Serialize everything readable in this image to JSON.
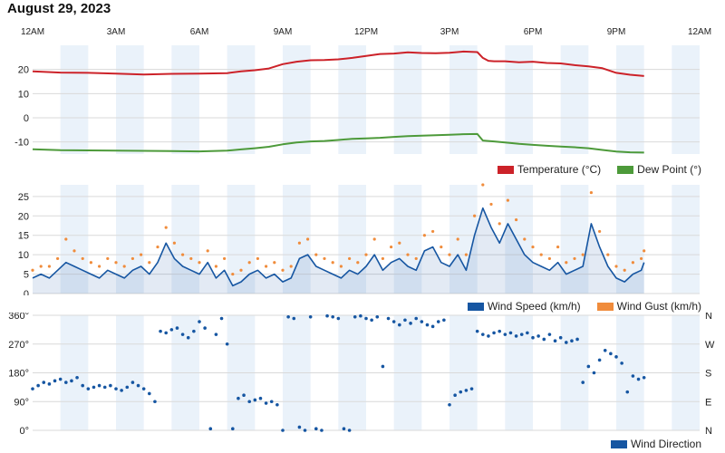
{
  "page": {
    "title": "August 29, 2023"
  },
  "x_axis": {
    "ticks": [
      "12AM",
      "3AM",
      "6AM",
      "9AM",
      "12PM",
      "3PM",
      "6PM",
      "9PM",
      "12AM"
    ],
    "tick_hours": [
      0,
      3,
      6,
      9,
      12,
      15,
      18,
      21,
      24
    ],
    "range_hours": [
      0,
      24
    ]
  },
  "colors": {
    "temperature": "#cc2229",
    "dew_point": "#4d9a3a",
    "wind_speed": "#1656a2",
    "wind_gust": "#f08c3c",
    "wind_direction": "#1656a2",
    "band": "#eaf2fa",
    "grid": "#d9d9d9"
  },
  "chart_data": [
    {
      "type": "line",
      "x_unit": "hours since midnight",
      "ylim": [
        -15,
        30
      ],
      "y_ticks": [
        -10,
        0,
        10,
        20
      ],
      "grid": true,
      "legend_position": "bottom-right",
      "legend": [
        "Temperature (°C)",
        "Dew Point (°)"
      ],
      "series": [
        {
          "name": "Temperature (°C)",
          "x": [
            0,
            1,
            2,
            3,
            4,
            5,
            6,
            7,
            7.5,
            8,
            8.5,
            9,
            9.5,
            10,
            10.5,
            11,
            11.5,
            12,
            12.5,
            13,
            13.5,
            14,
            14.5,
            15,
            15.5,
            16,
            16.2,
            16.4,
            16.6,
            17,
            17.5,
            18,
            18.5,
            19,
            19.5,
            20,
            20.5,
            21,
            21.5,
            22
          ],
          "y": [
            19.2,
            18.7,
            18.6,
            18.3,
            17.9,
            18.2,
            18.3,
            18.5,
            19.2,
            19.7,
            20.4,
            22.2,
            23.2,
            23.8,
            23.9,
            24.2,
            24.8,
            25.6,
            26.4,
            26.6,
            27.1,
            26.8,
            26.7,
            26.9,
            27.4,
            27.2,
            24.8,
            23.6,
            23.4,
            23.4,
            23.0,
            23.2,
            22.7,
            22.5,
            21.8,
            21.3,
            20.5,
            18.6,
            17.8,
            17.3
          ]
        },
        {
          "name": "Dew Point (°)",
          "x": [
            0,
            1,
            2,
            3,
            4,
            5,
            6,
            7,
            7.5,
            8,
            8.5,
            9,
            9.5,
            10,
            10.5,
            11,
            11.5,
            12,
            12.5,
            13,
            13.5,
            14,
            14.5,
            15,
            15.5,
            16,
            16.2,
            16.4,
            16.6,
            17,
            17.5,
            18,
            18.5,
            19,
            19.5,
            20,
            20.5,
            21,
            21.5,
            22
          ],
          "y": [
            -13.0,
            -13.4,
            -13.5,
            -13.6,
            -13.7,
            -13.8,
            -13.9,
            -13.6,
            -13.1,
            -12.6,
            -12.0,
            -11.0,
            -10.2,
            -9.8,
            -9.6,
            -9.2,
            -8.7,
            -8.5,
            -8.3,
            -7.9,
            -7.6,
            -7.4,
            -7.2,
            -7.0,
            -6.8,
            -6.7,
            -9.4,
            -9.6,
            -9.8,
            -10.2,
            -10.8,
            -11.2,
            -11.6,
            -11.9,
            -12.2,
            -12.6,
            -13.3,
            -14.0,
            -14.3,
            -14.4
          ]
        }
      ]
    },
    {
      "type": "line",
      "x_unit": "hours since midnight",
      "ylim": [
        0,
        28
      ],
      "y_ticks": [
        0,
        5,
        10,
        15,
        20,
        25
      ],
      "grid": true,
      "legend_position": "bottom-right",
      "legend": [
        "Wind Speed (km/h)",
        "Wind Gust (km/h)"
      ],
      "series": [
        {
          "name": "Wind Speed (km/h)",
          "x": [
            0,
            0.3,
            0.6,
            0.9,
            1.2,
            1.5,
            1.8,
            2.1,
            2.4,
            2.7,
            3.0,
            3.3,
            3.6,
            3.9,
            4.2,
            4.5,
            4.8,
            5.1,
            5.4,
            5.7,
            6.0,
            6.3,
            6.6,
            6.9,
            7.2,
            7.5,
            7.8,
            8.1,
            8.4,
            8.7,
            9.0,
            9.3,
            9.6,
            9.9,
            10.2,
            10.5,
            10.8,
            11.1,
            11.4,
            11.7,
            12.0,
            12.3,
            12.6,
            12.9,
            13.2,
            13.5,
            13.8,
            14.1,
            14.4,
            14.7,
            15.0,
            15.3,
            15.6,
            15.9,
            16.2,
            16.5,
            16.8,
            17.1,
            17.4,
            17.7,
            18.0,
            18.3,
            18.6,
            18.9,
            19.2,
            19.5,
            19.8,
            20.1,
            20.4,
            20.7,
            21.0,
            21.3,
            21.6,
            21.9,
            22.0
          ],
          "y": [
            4,
            5,
            4,
            6,
            8,
            7,
            6,
            5,
            4,
            6,
            5,
            4,
            6,
            7,
            5,
            8,
            13,
            9,
            7,
            6,
            5,
            8,
            4,
            6,
            2,
            3,
            5,
            6,
            4,
            5,
            3,
            4,
            9,
            10,
            7,
            6,
            5,
            4,
            6,
            5,
            7,
            10,
            6,
            8,
            9,
            7,
            6,
            11,
            12,
            8,
            7,
            10,
            6,
            15,
            22,
            17,
            13,
            18,
            14,
            10,
            8,
            7,
            6,
            8,
            5,
            6,
            7,
            18,
            12,
            7,
            4,
            3,
            5,
            6,
            8
          ],
          "area": true
        },
        {
          "name": "Wind Gust (km/h)",
          "x": [
            0,
            0.3,
            0.6,
            0.9,
            1.2,
            1.5,
            1.8,
            2.1,
            2.4,
            2.7,
            3.0,
            3.3,
            3.6,
            3.9,
            4.2,
            4.5,
            4.8,
            5.1,
            5.4,
            5.7,
            6.0,
            6.3,
            6.6,
            6.9,
            7.2,
            7.5,
            7.8,
            8.1,
            8.4,
            8.7,
            9.0,
            9.3,
            9.6,
            9.9,
            10.2,
            10.5,
            10.8,
            11.1,
            11.4,
            11.7,
            12.0,
            12.3,
            12.6,
            12.9,
            13.2,
            13.5,
            13.8,
            14.1,
            14.4,
            14.7,
            15.0,
            15.3,
            15.6,
            15.9,
            16.2,
            16.5,
            16.8,
            17.1,
            17.4,
            17.7,
            18.0,
            18.3,
            18.6,
            18.9,
            19.2,
            19.5,
            19.8,
            20.1,
            20.4,
            20.7,
            21.0,
            21.3,
            21.6,
            21.9,
            22.0
          ],
          "y": [
            6,
            7,
            7,
            9,
            14,
            11,
            9,
            8,
            7,
            9,
            8,
            7,
            9,
            10,
            8,
            12,
            17,
            13,
            10,
            9,
            8,
            11,
            7,
            9,
            5,
            6,
            8,
            9,
            7,
            8,
            6,
            7,
            13,
            14,
            10,
            9,
            8,
            7,
            9,
            8,
            10,
            14,
            9,
            12,
            13,
            10,
            9,
            15,
            16,
            12,
            10,
            14,
            10,
            20,
            28,
            23,
            18,
            24,
            19,
            14,
            12,
            10,
            9,
            12,
            8,
            9,
            10,
            26,
            16,
            10,
            7,
            6,
            8,
            9,
            11
          ]
        }
      ]
    },
    {
      "type": "scatter",
      "x_unit": "hours since midnight",
      "ylim": [
        0,
        360
      ],
      "y_ticks": [
        0,
        90,
        180,
        270,
        360
      ],
      "y_tick_labels": [
        "0°",
        "90°",
        "180°",
        "270°",
        "360°"
      ],
      "y_tick_labels_right": [
        "N",
        "E",
        "S",
        "W",
        "N"
      ],
      "grid": true,
      "legend_position": "bottom-right",
      "legend": [
        "Wind Direction"
      ],
      "series": [
        {
          "name": "Wind Direction",
          "x": [
            0,
            0.2,
            0.4,
            0.6,
            0.8,
            1.0,
            1.2,
            1.4,
            1.6,
            1.8,
            2.0,
            2.2,
            2.4,
            2.6,
            2.8,
            3.0,
            3.2,
            3.4,
            3.6,
            3.8,
            4.0,
            4.2,
            4.4,
            4.6,
            4.8,
            5.0,
            5.2,
            5.4,
            5.6,
            5.8,
            6.0,
            6.2,
            6.4,
            6.6,
            6.8,
            7.0,
            7.2,
            7.4,
            7.6,
            7.8,
            8.0,
            8.2,
            8.4,
            8.6,
            8.8,
            9.0,
            9.2,
            9.4,
            9.6,
            9.8,
            10.0,
            10.2,
            10.4,
            10.6,
            10.8,
            11.0,
            11.2,
            11.4,
            11.6,
            11.8,
            12.0,
            12.2,
            12.4,
            12.6,
            12.8,
            13.0,
            13.2,
            13.4,
            13.6,
            13.8,
            14.0,
            14.2,
            14.4,
            14.6,
            14.8,
            15.0,
            15.2,
            15.4,
            15.6,
            15.8,
            16.0,
            16.2,
            16.4,
            16.6,
            16.8,
            17.0,
            17.2,
            17.4,
            17.6,
            17.8,
            18.0,
            18.2,
            18.4,
            18.6,
            18.8,
            19.0,
            19.2,
            19.4,
            19.6,
            19.8,
            20.0,
            20.2,
            20.4,
            20.6,
            20.8,
            21.0,
            21.2,
            21.4,
            21.6,
            21.8,
            22.0
          ],
          "y": [
            130,
            140,
            150,
            145,
            155,
            160,
            150,
            155,
            165,
            140,
            130,
            135,
            140,
            135,
            140,
            130,
            125,
            135,
            150,
            140,
            130,
            115,
            90,
            310,
            305,
            315,
            320,
            300,
            290,
            310,
            340,
            320,
            5,
            300,
            350,
            270,
            5,
            100,
            110,
            90,
            95,
            100,
            85,
            90,
            80,
            0,
            355,
            350,
            10,
            0,
            355,
            5,
            0,
            358,
            355,
            350,
            5,
            0,
            355,
            358,
            350,
            345,
            355,
            200,
            350,
            340,
            330,
            345,
            335,
            350,
            340,
            330,
            325,
            340,
            345,
            80,
            110,
            120,
            125,
            130,
            310,
            300,
            295,
            305,
            310,
            300,
            305,
            295,
            300,
            305,
            290,
            295,
            285,
            300,
            280,
            290,
            275,
            280,
            285,
            150,
            200,
            180,
            220,
            250,
            240,
            230,
            210,
            120,
            170,
            160,
            165
          ],
          "marker": "dot"
        }
      ]
    }
  ]
}
